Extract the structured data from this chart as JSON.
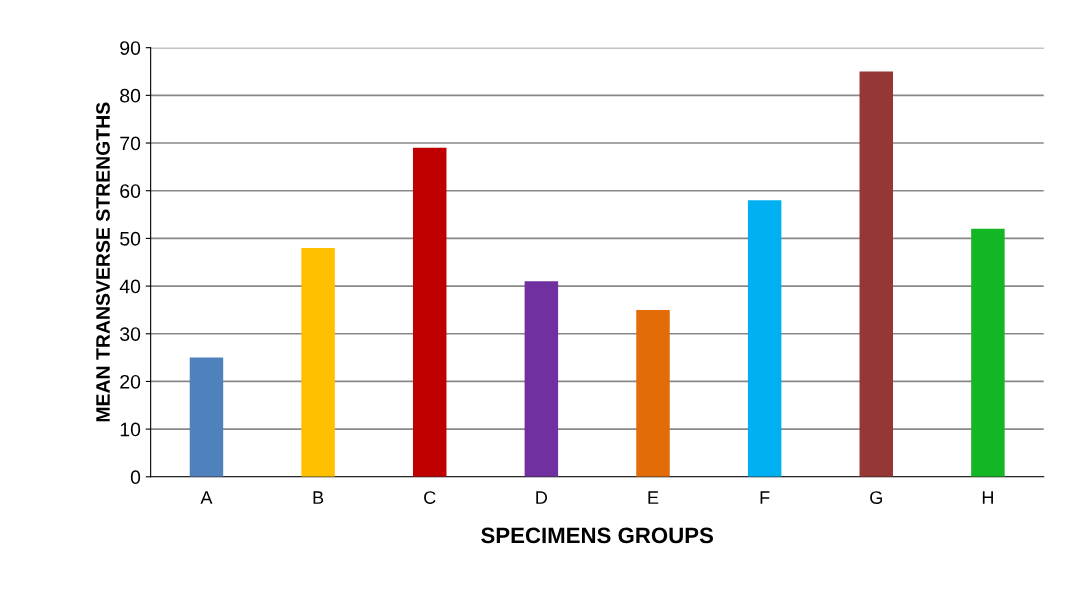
{
  "chart_data": {
    "type": "bar",
    "xlabel": "SPECIMENS GROUPS",
    "ylabel": "MEAN TRANSVERSE STRENGTHS",
    "categories": [
      "A",
      "B",
      "C",
      "D",
      "E",
      "F",
      "G",
      "H"
    ],
    "values": [
      25,
      48,
      69,
      41,
      35,
      58,
      85,
      52
    ],
    "colors": [
      "#4f81bd",
      "#ffc000",
      "#c00000",
      "#7030a0",
      "#e36c09",
      "#00b0f0",
      "#953735",
      "#13b623"
    ],
    "ylim": [
      0,
      90
    ],
    "yticks": [
      0,
      10,
      20,
      30,
      40,
      50,
      60,
      70,
      80,
      90
    ],
    "grid": "y"
  }
}
